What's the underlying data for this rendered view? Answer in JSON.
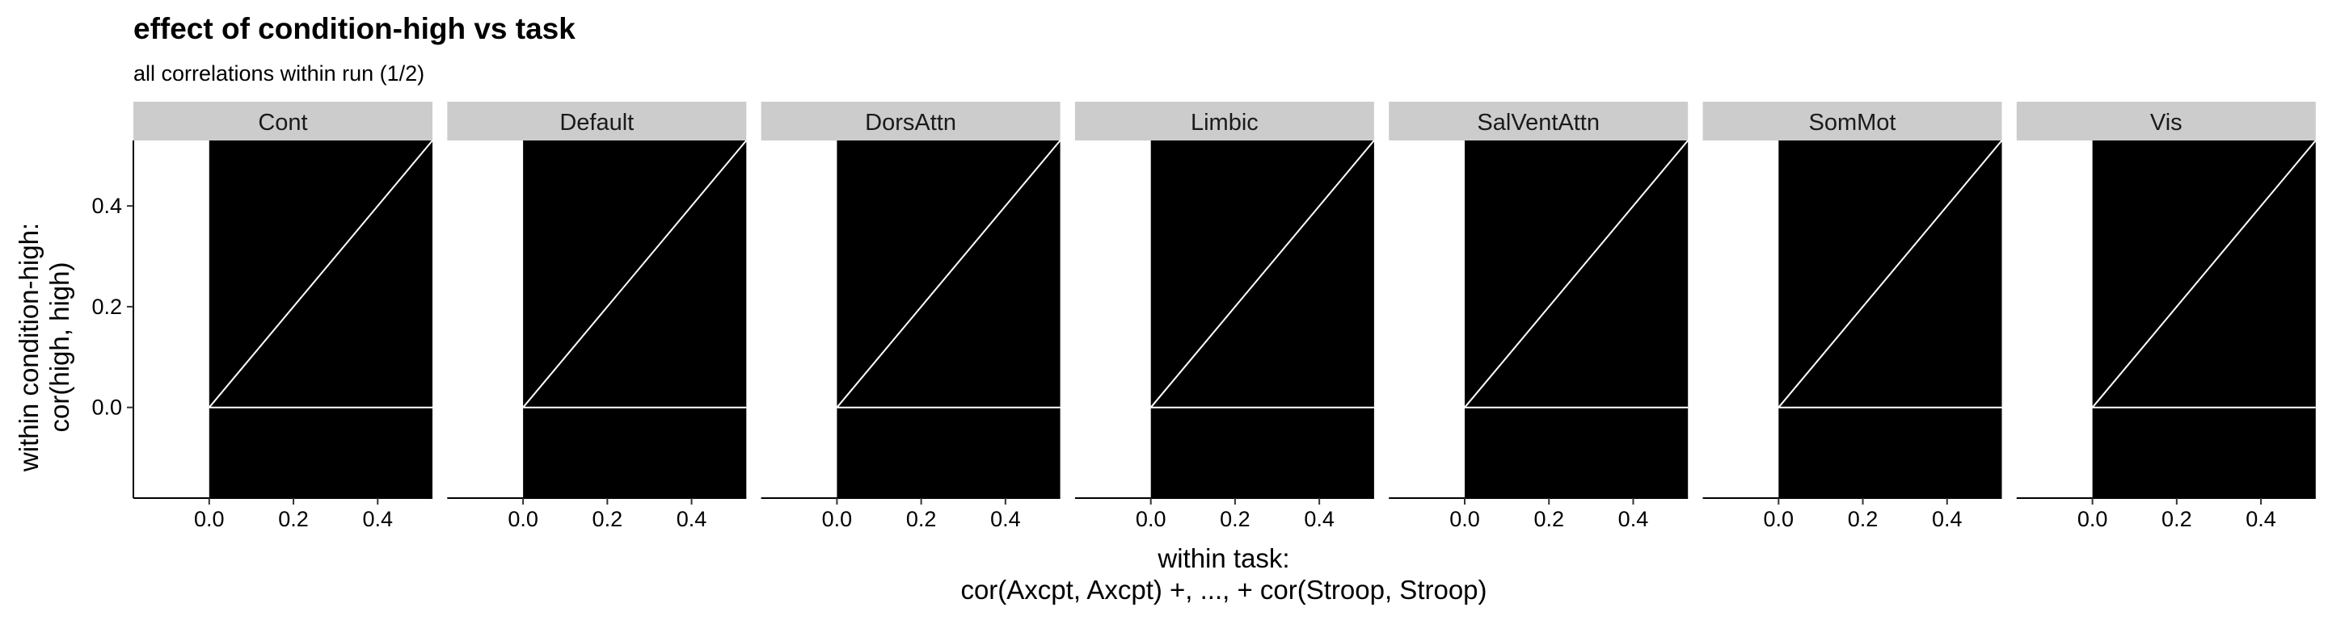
{
  "chart_data": {
    "type": "faceted-scatter",
    "title": "effect of condition-high vs task",
    "subtitle": "all correlations within run (1/2)",
    "xlabel_lines": [
      "within task:",
      "cor(Axcpt, Axcpt) +, ..., + cor(Stroop, Stroop)"
    ],
    "ylabel_lines": [
      "within condition-high:",
      "cor(high, high)"
    ],
    "xlim": [
      -0.18,
      0.53
    ],
    "ylim": [
      -0.18,
      0.53
    ],
    "x_ticks": [
      0.0,
      0.2,
      0.4
    ],
    "x_tick_labels": [
      "0.0",
      "0.2",
      "0.4"
    ],
    "y_ticks": [
      0.0,
      0.2,
      0.4
    ],
    "y_tick_labels": [
      "0.0",
      "0.2",
      "0.4"
    ],
    "grid": false,
    "panel_colors": {
      "strip": "#cccccc",
      "points": "#000000",
      "reference_lines": "#ffffff",
      "axis": "#000000"
    },
    "facets": [
      {
        "name": "Cont"
      },
      {
        "name": "Default"
      },
      {
        "name": "DorsAttn"
      },
      {
        "name": "Limbic"
      },
      {
        "name": "SalVentAttn"
      },
      {
        "name": "SomMot"
      },
      {
        "name": "Vis"
      }
    ],
    "point_cloud": {
      "x_range": [
        0.0,
        0.53
      ],
      "y_range": [
        -0.18,
        0.53
      ]
    },
    "reference_lines": [
      {
        "type": "identity",
        "x0": 0.0,
        "y0": 0.0,
        "x1": 0.53,
        "y1": 0.53
      },
      {
        "type": "horizontal",
        "y": 0.0,
        "x0": 0.0,
        "x1": 0.53
      }
    ]
  }
}
